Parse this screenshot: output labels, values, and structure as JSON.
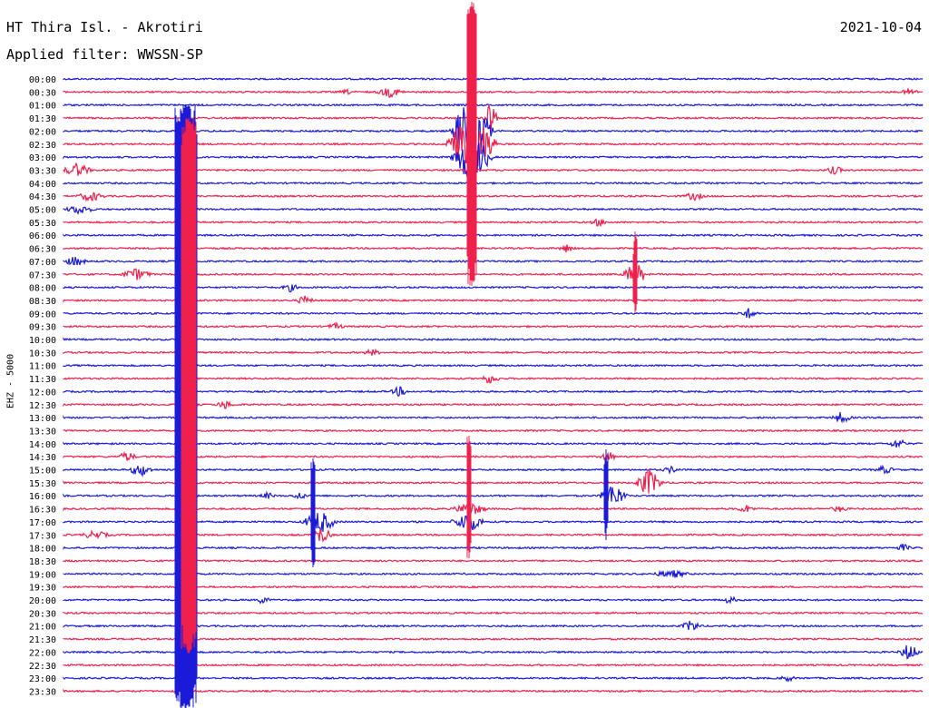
{
  "header": {
    "station": "HT Thira Isl. - Akrotiri",
    "date": "2021-10-04",
    "filter": "Applied filter: WWSSN-SP",
    "channel_label": "EHZ - 5000"
  },
  "colors": {
    "even": "#1a1ad8",
    "odd": "#f0204c",
    "text": "#000000"
  },
  "chart_data": {
    "type": "line",
    "title": "HT Thira Isl. - Akrotiri",
    "ylabel": "EHZ - 5000",
    "traces": [
      "00:00",
      "00:30",
      "01:00",
      "01:30",
      "02:00",
      "02:30",
      "03:00",
      "03:30",
      "04:00",
      "04:30",
      "05:00",
      "05:30",
      "06:00",
      "06:30",
      "07:00",
      "07:30",
      "08:00",
      "08:30",
      "09:00",
      "09:30",
      "10:00",
      "10:30",
      "11:00",
      "11:30",
      "12:00",
      "12:30",
      "13:00",
      "13:30",
      "14:00",
      "14:30",
      "15:00",
      "15:30",
      "16:00",
      "16:30",
      "17:00",
      "17:30",
      "18:00",
      "18:30",
      "19:00",
      "19:30",
      "20:00",
      "20:30",
      "21:00",
      "21:30",
      "22:00",
      "22:30",
      "23:00",
      "23:30"
    ]
  }
}
